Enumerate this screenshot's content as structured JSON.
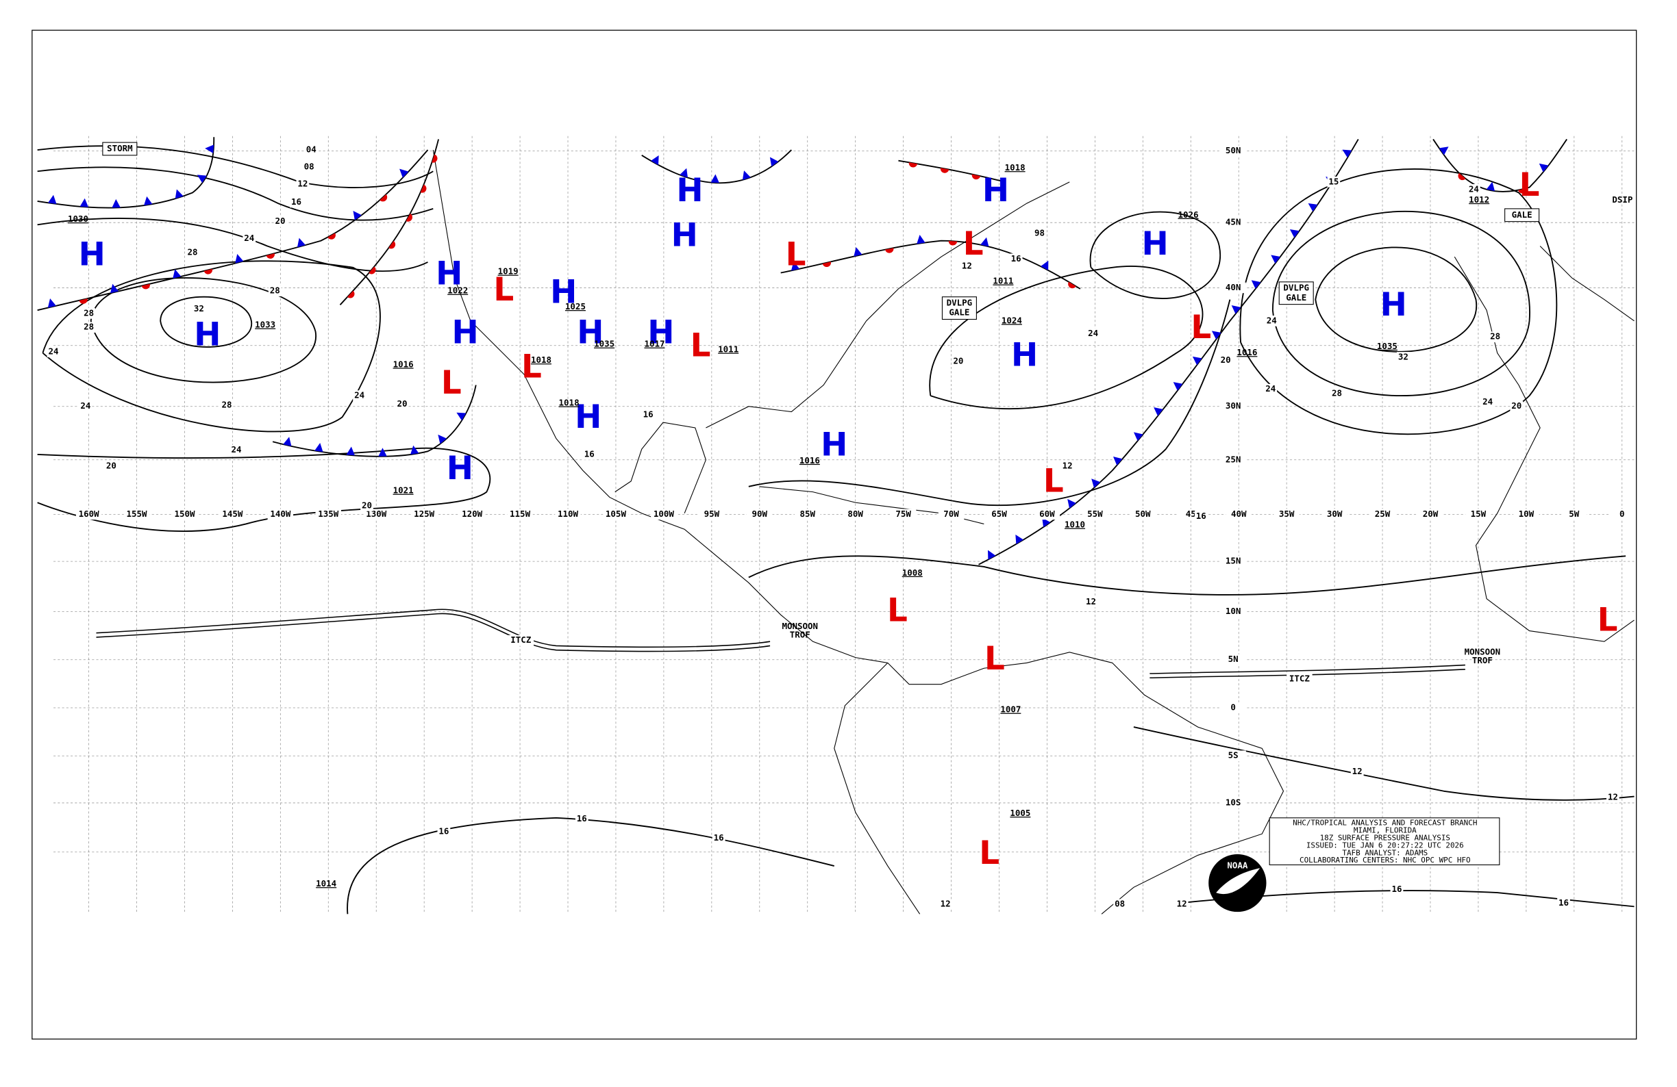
{
  "info_box": [
    "NHC/TROPICAL ANALYSIS AND FORECAST BRANCH",
    "MIAMI, FLORIDA",
    "18Z SURFACE PRESSURE ANALYSIS",
    "ISSUED: TUE JAN 6 20:27:22 UTC 2026",
    "TAFB ANALYST: ADAMS",
    "COLLABORATING CENTERS: NHC OPC WPC HFO"
  ],
  "logo": "NOAA",
  "longitudes": [
    "160W",
    "155W",
    "150W",
    "145W",
    "140W",
    "135W",
    "130W",
    "125W",
    "120W",
    "115W",
    "110W",
    "105W",
    "100W",
    "95W",
    "90W",
    "85W",
    "80W",
    "75W",
    "70W",
    "65W",
    "60W",
    "55W",
    "50W",
    "45",
    "40W",
    "35W",
    "30W",
    "25W",
    "20W",
    "15W",
    "10W",
    "5W",
    "0"
  ],
  "latitudes": [
    "50N",
    "45N",
    "40N",
    "30N",
    "25N",
    "15N",
    "10N",
    "5N",
    "0",
    "5S",
    "10S"
  ],
  "systems": [
    "H",
    "H",
    "H",
    "H",
    "H",
    "H",
    "H",
    "H",
    "H",
    "H",
    "H",
    "H",
    "H",
    "H",
    "H",
    "H",
    "L",
    "L",
    "L",
    "L",
    "L",
    "L",
    "L",
    "L",
    "L",
    "L",
    "L",
    "L",
    "L"
  ],
  "central_pressures": [
    "1030",
    "1033",
    "1016",
    "1021",
    "1022",
    "1019",
    "1025",
    "1035",
    "1017",
    "1011",
    "1018",
    "1018",
    "1016",
    "1018",
    "1011",
    "1024",
    "1026",
    "1016",
    "1035",
    "1012",
    "1010",
    "1008",
    "1007",
    "1005",
    "1014"
  ],
  "isobar_labels": [
    "04",
    "08",
    "12",
    "16",
    "20",
    "24",
    "28",
    "28",
    "32",
    "28",
    "28",
    "24",
    "24",
    "28",
    "24",
    "24",
    "20",
    "20",
    "20",
    "12",
    "12",
    "12",
    "16",
    "16",
    "16",
    "16",
    "16",
    "24",
    "20",
    "16",
    "20",
    "24",
    "24",
    "28",
    "32",
    "28",
    "24",
    "15",
    "98",
    "16",
    "12",
    "12",
    "16",
    "16",
    "12",
    "08",
    "12",
    "24",
    "20"
  ],
  "boxed_labels": [
    [
      "STORM"
    ],
    [
      "DVLPG",
      "GALE"
    ],
    [
      "DVLPG",
      "GALE"
    ],
    [
      "GALE"
    ]
  ],
  "other_labels": [
    "DSIP"
  ],
  "itcz_labels": [
    "ITCZ",
    "ITCZ"
  ],
  "trough_labels": [
    [
      "MONSOON",
      "TROF"
    ],
    [
      "MONSOON",
      "TROF"
    ]
  ]
}
